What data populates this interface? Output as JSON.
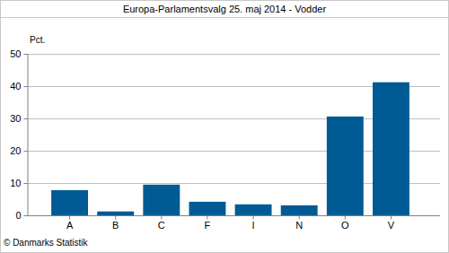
{
  "chart_data": {
    "type": "bar",
    "title": "Europa-Parlamentsvalg 25. maj 2014 - Vodder",
    "y_label": "Pct.",
    "source": "© Danmarks Statistik",
    "categories": [
      "A",
      "B",
      "C",
      "F",
      "I",
      "N",
      "O",
      "V"
    ],
    "values": [
      7.8,
      1.2,
      9.5,
      4.2,
      3.4,
      3.1,
      30.6,
      41.2
    ],
    "color": "#005a94",
    "ylim": [
      0,
      50
    ],
    "yticks": [
      0,
      10,
      20,
      30,
      40,
      50
    ],
    "grid": true
  }
}
